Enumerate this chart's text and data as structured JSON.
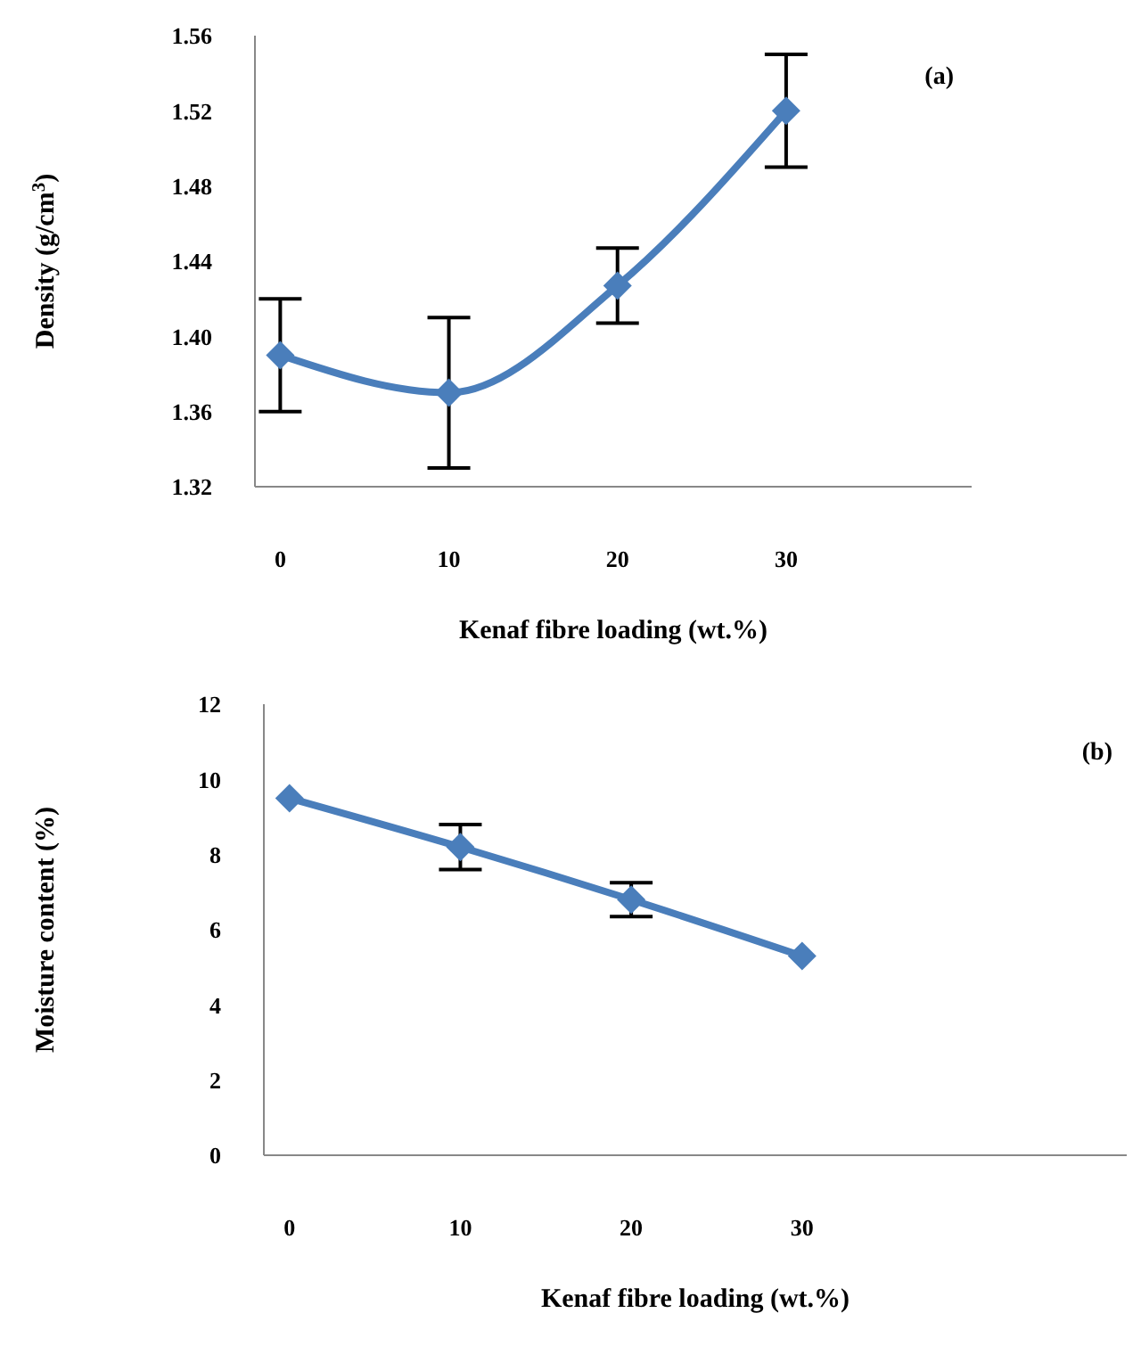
{
  "chart_data": [
    {
      "type": "line",
      "xlabel": "Kenaf fibre loading (wt.%)",
      "ylabel": "Density (g/cm$^{3}$)",
      "annotations": [
        "(a)"
      ],
      "x": [
        0,
        10,
        20,
        30
      ],
      "xlim": [
        -1.5,
        41
      ],
      "xticks": [
        0,
        10,
        20,
        30
      ],
      "ylim": [
        1.32,
        1.56
      ],
      "yticks": [
        1.32,
        1.36,
        {
          "value": 1.4,
          "label": "1.40"
        },
        1.44,
        1.48,
        1.52,
        1.56
      ],
      "grid": false,
      "legend": false,
      "marker": "diamond",
      "line_style": "solid",
      "series": [
        {
          "color": "#4a7ebb",
          "values": [
            1.39,
            1.37,
            1.427,
            1.52
          ],
          "errors": [
            0.03,
            0.04,
            0.02,
            0.03
          ]
        }
      ]
    },
    {
      "type": "line",
      "xlabel": "Kenaf fibre loading (wt.%)",
      "ylabel": "Moisture content (%)",
      "annotations": [
        "(b)"
      ],
      "x": [
        0,
        10,
        20,
        30
      ],
      "xlim": [
        -1.5,
        49
      ],
      "xticks": [
        0,
        10,
        20,
        30
      ],
      "ylim": [
        0,
        12
      ],
      "yticks": [
        0,
        2,
        4,
        6,
        8,
        10,
        12
      ],
      "grid": false,
      "legend": false,
      "marker": "diamond",
      "line_style": "solid",
      "series": [
        {
          "color": "#4a7ebb",
          "values": [
            9.5,
            8.2,
            6.8,
            5.3
          ],
          "errors": [
            null,
            0.6,
            0.45,
            null
          ]
        }
      ]
    }
  ]
}
